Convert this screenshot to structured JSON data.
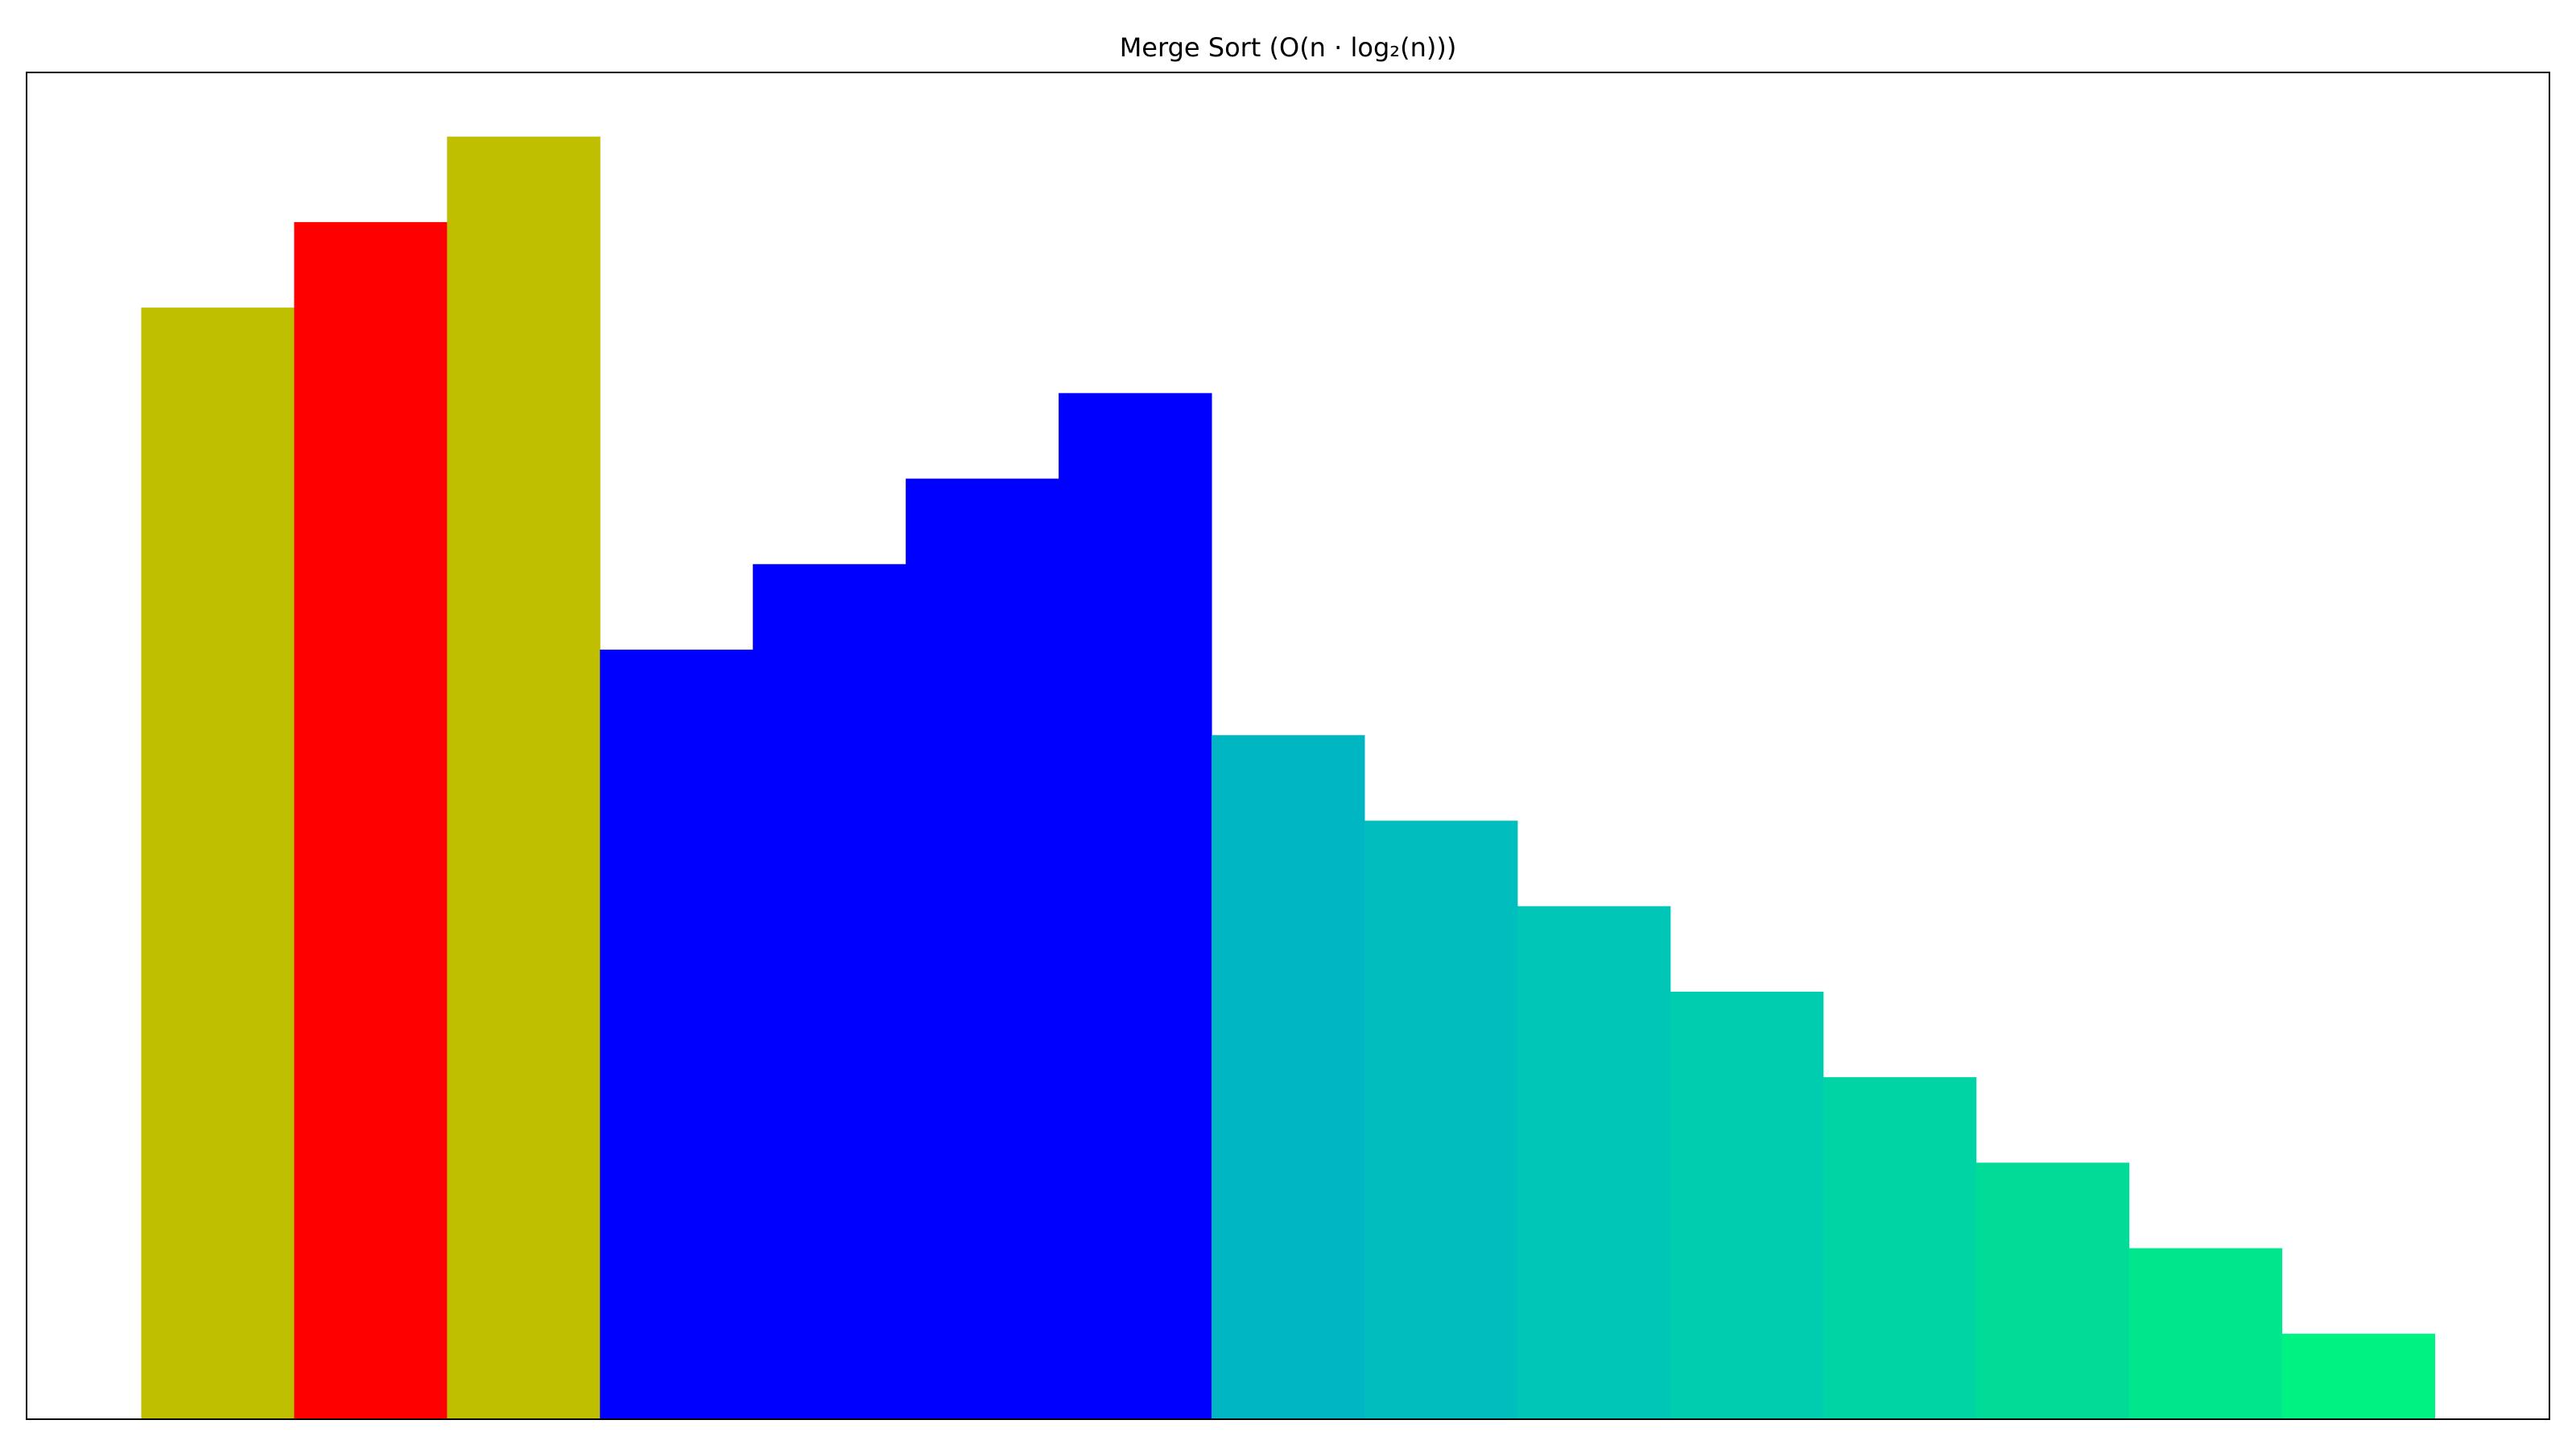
{
  "chart_data": {
    "type": "bar",
    "title": "Merge Sort (O(n · log₂(n)))",
    "values": [
      13,
      14,
      15,
      9,
      10,
      11,
      12,
      8,
      7,
      6,
      5,
      4,
      3,
      2,
      1
    ],
    "colors": [
      "#bfbf00",
      "#ff0000",
      "#bfbf00",
      "#0000ff",
      "#0000ff",
      "#0000ff",
      "#0000ff",
      "#00b6c2",
      "#00bebe",
      "#00c6b8",
      "#00ccb0",
      "#00d4a4",
      "#00dc98",
      "#00e68c",
      "#00f282"
    ],
    "ylim": [
      0,
      15.75
    ]
  }
}
